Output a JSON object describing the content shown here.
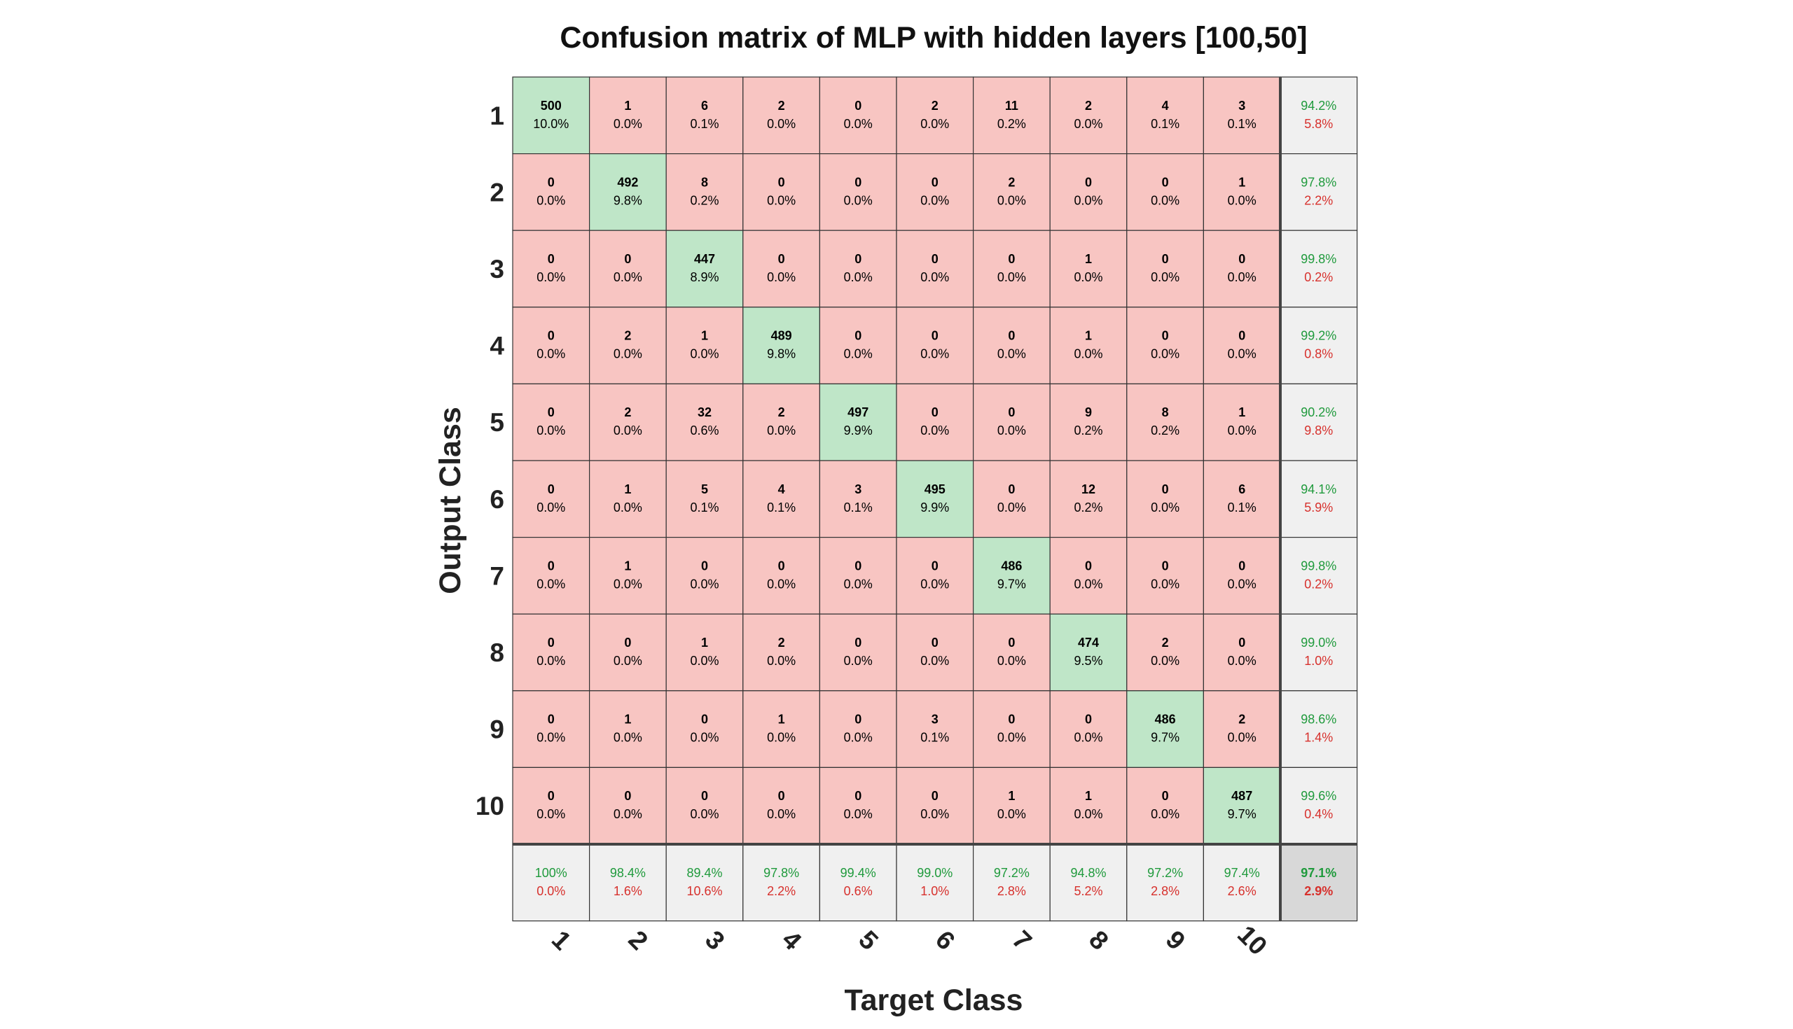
{
  "chart_data": {
    "type": "heatmap",
    "title": "Confusion matrix of MLP with hidden layers [100,50]",
    "xlabel": "Target Class",
    "ylabel": "Output Class",
    "x_tick_labels": [
      "1",
      "2",
      "3",
      "4",
      "5",
      "6",
      "7",
      "8",
      "9",
      "10"
    ],
    "y_tick_labels": [
      "1",
      "2",
      "3",
      "4",
      "5",
      "6",
      "7",
      "8",
      "9",
      "10"
    ],
    "cells": [
      [
        [
          "500",
          "10.0%"
        ],
        [
          "1",
          "0.0%"
        ],
        [
          "6",
          "0.1%"
        ],
        [
          "2",
          "0.0%"
        ],
        [
          "0",
          "0.0%"
        ],
        [
          "2",
          "0.0%"
        ],
        [
          "11",
          "0.2%"
        ],
        [
          "2",
          "0.0%"
        ],
        [
          "4",
          "0.1%"
        ],
        [
          "3",
          "0.1%"
        ]
      ],
      [
        [
          "0",
          "0.0%"
        ],
        [
          "492",
          "9.8%"
        ],
        [
          "8",
          "0.2%"
        ],
        [
          "0",
          "0.0%"
        ],
        [
          "0",
          "0.0%"
        ],
        [
          "0",
          "0.0%"
        ],
        [
          "2",
          "0.0%"
        ],
        [
          "0",
          "0.0%"
        ],
        [
          "0",
          "0.0%"
        ],
        [
          "1",
          "0.0%"
        ]
      ],
      [
        [
          "0",
          "0.0%"
        ],
        [
          "0",
          "0.0%"
        ],
        [
          "447",
          "8.9%"
        ],
        [
          "0",
          "0.0%"
        ],
        [
          "0",
          "0.0%"
        ],
        [
          "0",
          "0.0%"
        ],
        [
          "0",
          "0.0%"
        ],
        [
          "1",
          "0.0%"
        ],
        [
          "0",
          "0.0%"
        ],
        [
          "0",
          "0.0%"
        ]
      ],
      [
        [
          "0",
          "0.0%"
        ],
        [
          "2",
          "0.0%"
        ],
        [
          "1",
          "0.0%"
        ],
        [
          "489",
          "9.8%"
        ],
        [
          "0",
          "0.0%"
        ],
        [
          "0",
          "0.0%"
        ],
        [
          "0",
          "0.0%"
        ],
        [
          "1",
          "0.0%"
        ],
        [
          "0",
          "0.0%"
        ],
        [
          "0",
          "0.0%"
        ]
      ],
      [
        [
          "0",
          "0.0%"
        ],
        [
          "2",
          "0.0%"
        ],
        [
          "32",
          "0.6%"
        ],
        [
          "2",
          "0.0%"
        ],
        [
          "497",
          "9.9%"
        ],
        [
          "0",
          "0.0%"
        ],
        [
          "0",
          "0.0%"
        ],
        [
          "9",
          "0.2%"
        ],
        [
          "8",
          "0.2%"
        ],
        [
          "1",
          "0.0%"
        ]
      ],
      [
        [
          "0",
          "0.0%"
        ],
        [
          "1",
          "0.0%"
        ],
        [
          "5",
          "0.1%"
        ],
        [
          "4",
          "0.1%"
        ],
        [
          "3",
          "0.1%"
        ],
        [
          "495",
          "9.9%"
        ],
        [
          "0",
          "0.0%"
        ],
        [
          "12",
          "0.2%"
        ],
        [
          "0",
          "0.0%"
        ],
        [
          "6",
          "0.1%"
        ]
      ],
      [
        [
          "0",
          "0.0%"
        ],
        [
          "1",
          "0.0%"
        ],
        [
          "0",
          "0.0%"
        ],
        [
          "0",
          "0.0%"
        ],
        [
          "0",
          "0.0%"
        ],
        [
          "0",
          "0.0%"
        ],
        [
          "486",
          "9.7%"
        ],
        [
          "0",
          "0.0%"
        ],
        [
          "0",
          "0.0%"
        ],
        [
          "0",
          "0.0%"
        ]
      ],
      [
        [
          "0",
          "0.0%"
        ],
        [
          "0",
          "0.0%"
        ],
        [
          "1",
          "0.0%"
        ],
        [
          "2",
          "0.0%"
        ],
        [
          "0",
          "0.0%"
        ],
        [
          "0",
          "0.0%"
        ],
        [
          "0",
          "0.0%"
        ],
        [
          "474",
          "9.5%"
        ],
        [
          "2",
          "0.0%"
        ],
        [
          "0",
          "0.0%"
        ]
      ],
      [
        [
          "0",
          "0.0%"
        ],
        [
          "1",
          "0.0%"
        ],
        [
          "0",
          "0.0%"
        ],
        [
          "1",
          "0.0%"
        ],
        [
          "0",
          "0.0%"
        ],
        [
          "3",
          "0.1%"
        ],
        [
          "0",
          "0.0%"
        ],
        [
          "0",
          "0.0%"
        ],
        [
          "486",
          "9.7%"
        ],
        [
          "2",
          "0.0%"
        ]
      ],
      [
        [
          "0",
          "0.0%"
        ],
        [
          "0",
          "0.0%"
        ],
        [
          "0",
          "0.0%"
        ],
        [
          "0",
          "0.0%"
        ],
        [
          "0",
          "0.0%"
        ],
        [
          "0",
          "0.0%"
        ],
        [
          "1",
          "0.0%"
        ],
        [
          "1",
          "0.0%"
        ],
        [
          "0",
          "0.0%"
        ],
        [
          "487",
          "9.7%"
        ]
      ]
    ],
    "row_summary": [
      [
        "94.2%",
        "5.8%"
      ],
      [
        "97.8%",
        "2.2%"
      ],
      [
        "99.8%",
        "0.2%"
      ],
      [
        "99.2%",
        "0.8%"
      ],
      [
        "90.2%",
        "9.8%"
      ],
      [
        "94.1%",
        "5.9%"
      ],
      [
        "99.8%",
        "0.2%"
      ],
      [
        "99.0%",
        "1.0%"
      ],
      [
        "98.6%",
        "1.4%"
      ],
      [
        "99.6%",
        "0.4%"
      ]
    ],
    "col_summary": [
      [
        "100%",
        "0.0%"
      ],
      [
        "98.4%",
        "1.6%"
      ],
      [
        "89.4%",
        "10.6%"
      ],
      [
        "97.8%",
        "2.2%"
      ],
      [
        "99.4%",
        "0.6%"
      ],
      [
        "99.0%",
        "1.0%"
      ],
      [
        "97.2%",
        "2.8%"
      ],
      [
        "94.8%",
        "5.2%"
      ],
      [
        "97.2%",
        "2.8%"
      ],
      [
        "97.4%",
        "2.6%"
      ]
    ],
    "overall": [
      "97.1%",
      "2.9%"
    ],
    "colors": {
      "diagonal": "#bfe6c8",
      "off_diagonal": "#f8c5c2",
      "summary": "#f0f0f0",
      "overall": "#d8d8d8",
      "correct_text": "#1f9a3c",
      "error_text": "#d7312d",
      "grid": "#333333"
    }
  }
}
